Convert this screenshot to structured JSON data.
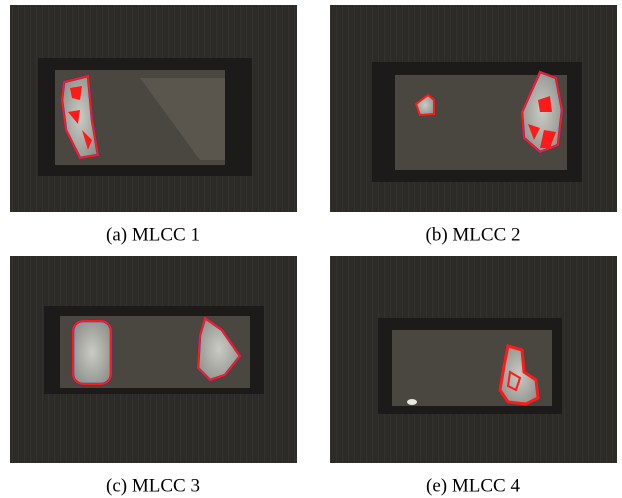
{
  "figure": {
    "panels": [
      {
        "caption": "(a) MLCC 1"
      },
      {
        "caption": "(b) MLCC 2"
      },
      {
        "caption": "(c) MLCC 3"
      },
      {
        "caption": "(e) MLCC 4"
      }
    ]
  }
}
